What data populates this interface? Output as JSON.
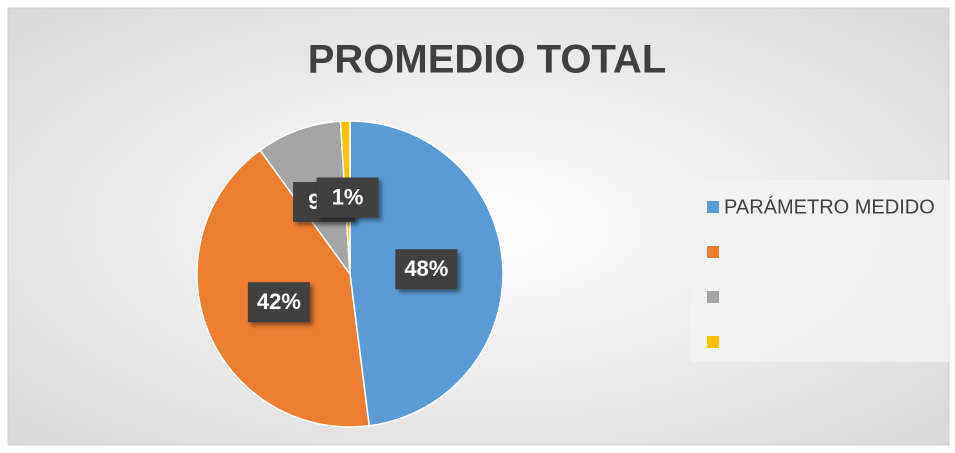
{
  "chart_data": {
    "type": "pie",
    "title": "PROMEDIO TOTAL",
    "categories": [
      "PARÁMETRO MEDIDO",
      null,
      null,
      null
    ],
    "values": [
      48,
      42,
      9,
      1
    ],
    "value_labels": [
      "48%",
      "42%",
      "9%",
      "1%"
    ],
    "colors": [
      "#5b9bd5",
      "#ed7d31",
      "#a5a5a5",
      "#ffc000"
    ],
    "legend": "right"
  }
}
